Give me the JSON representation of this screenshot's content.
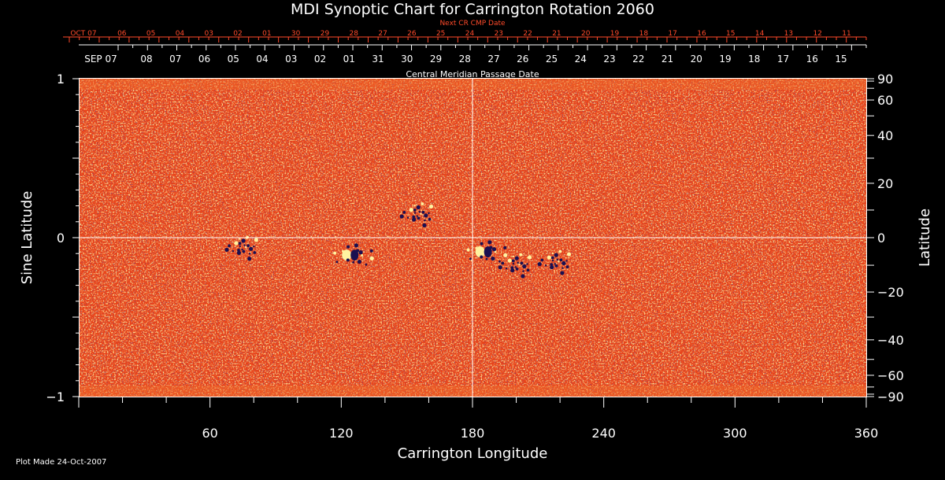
{
  "chart_data": {
    "type": "heatmap",
    "title": "MDI Synoptic Chart for Carrington Rotation 2060",
    "xlabel": "Carrington Longitude",
    "ylabel": "Sine Latitude",
    "ylabel_right": "Latitude",
    "xlim": [
      0,
      360
    ],
    "ylim": [
      -1,
      1
    ],
    "x_ticks": [
      "60",
      "120",
      "180",
      "240",
      "300",
      "360"
    ],
    "y_ticks_left": [
      "1",
      "0",
      "−1"
    ],
    "y_ticks_right": [
      "90",
      "60",
      "40",
      "20",
      "0",
      "−20",
      "−40",
      "−60",
      "−90"
    ],
    "grid_lines": {
      "longitude": 180,
      "sine_latitude": 0
    },
    "top_axis_red_label": "Next CR CMP Date",
    "top_axis_red_dates": [
      "OCT 07",
      "06",
      "05",
      "04",
      "03",
      "02",
      "01",
      "30",
      "29",
      "28",
      "27",
      "26",
      "25",
      "24",
      "23",
      "22",
      "21",
      "20",
      "19",
      "18",
      "17",
      "16",
      "15",
      "14",
      "13",
      "12",
      "11"
    ],
    "top_axis_white_label": "Central Meridian Passage Date",
    "top_axis_white_dates": [
      "SEP 07",
      "08",
      "07",
      "06",
      "05",
      "04",
      "03",
      "02",
      "01",
      "31",
      "30",
      "29",
      "28",
      "27",
      "26",
      "25",
      "24",
      "23",
      "22",
      "21",
      "20",
      "19",
      "18",
      "17",
      "16",
      "15"
    ],
    "footnote": "Plot Made 24-Oct-2007",
    "colors": {
      "background": "#e8431a",
      "positive": "#fff2a0",
      "negative": "#1a1050"
    },
    "features": [
      {
        "type": "bipole",
        "longitude": 125,
        "sine_latitude": -0.11
      },
      {
        "type": "bipole",
        "longitude": 186,
        "sine_latitude": -0.09
      },
      {
        "type": "plage",
        "longitude": 200,
        "sine_latitude": -0.17
      },
      {
        "type": "plage",
        "longitude": 218,
        "sine_latitude": -0.15
      },
      {
        "type": "plage",
        "longitude": 75,
        "sine_latitude": -0.06
      },
      {
        "type": "plage",
        "longitude": 155,
        "sine_latitude": 0.15
      }
    ]
  }
}
